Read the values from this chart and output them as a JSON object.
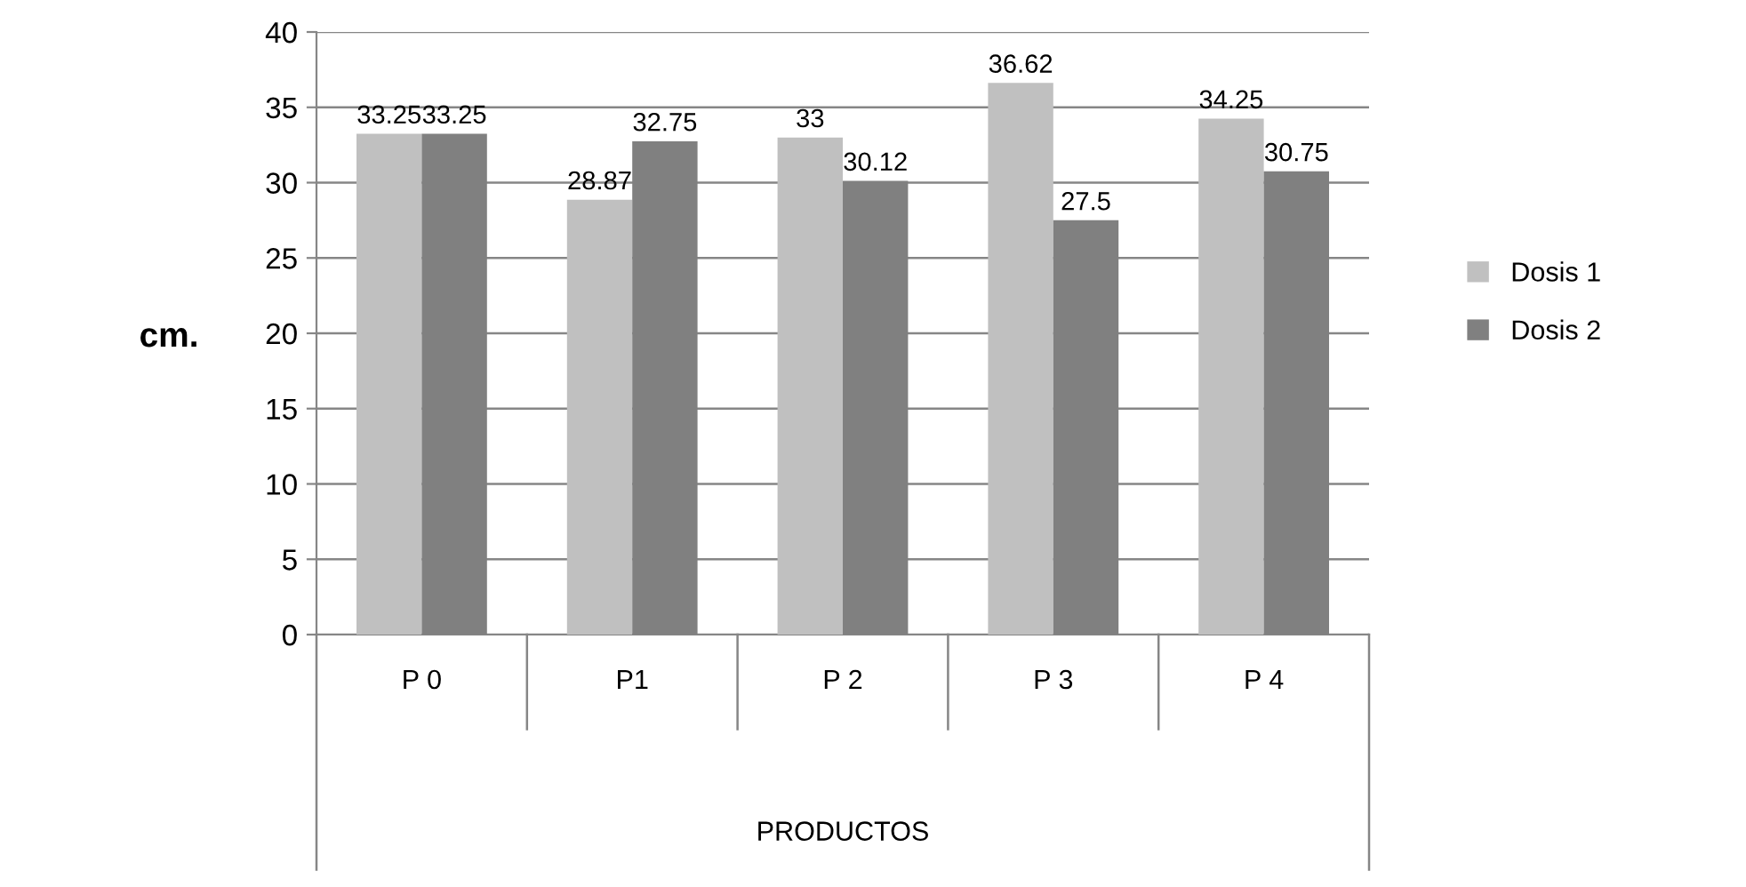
{
  "chart_data": {
    "type": "bar",
    "xlabel": "PRODUCTOS",
    "ylabel": "cm.",
    "categories": [
      "P 0",
      "P1",
      "P 2",
      "P 3",
      "P 4"
    ],
    "series": [
      {
        "name": "Dosis 1",
        "color": "#c0c0c0",
        "values": [
          33.25,
          28.87,
          33,
          36.62,
          34.25
        ]
      },
      {
        "name": "Dosis 2",
        "color": "#808080",
        "values": [
          33.25,
          32.75,
          30.12,
          27.5,
          30.75
        ]
      }
    ],
    "ylim": [
      0,
      40
    ],
    "yticks": [
      0,
      5,
      10,
      15,
      20,
      25,
      30,
      35,
      40
    ],
    "grid": "y",
    "legend": "right",
    "data_labels": true
  }
}
